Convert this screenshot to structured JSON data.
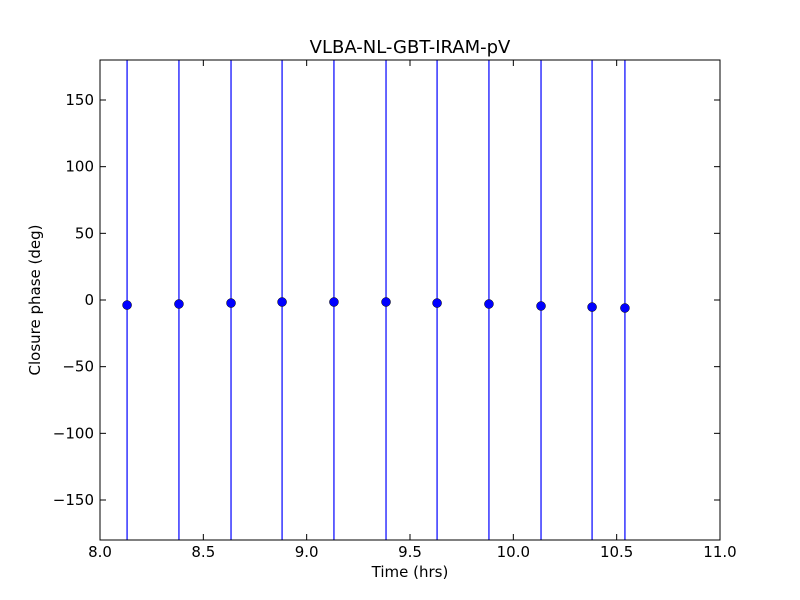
{
  "chart_data": {
    "type": "errorbar",
    "title": "VLBA-NL-GBT-IRAM-pV",
    "x_label": "Time (hrs)",
    "y_label": "Closure phase (deg)",
    "x": [
      8.131,
      8.382,
      8.634,
      8.881,
      9.132,
      9.384,
      9.631,
      9.882,
      10.134,
      10.381,
      10.54
    ],
    "values": [
      -3.8,
      -3,
      -2.3,
      -1.5,
      -1.5,
      -1.5,
      -2.3,
      -3,
      -4.5,
      -5.3,
      -6
    ],
    "errors": [
      200,
      200,
      200,
      200,
      200,
      200,
      200,
      200,
      200,
      200,
      200
    ],
    "color": "#0000ff",
    "xlim": [
      8,
      11
    ],
    "xticks": [
      {
        "value": 8,
        "label": "8.0"
      },
      8.5,
      {
        "value": 9,
        "label": "9.0"
      },
      9.5,
      {
        "value": 10,
        "label": "10.0"
      },
      10.5,
      {
        "value": 11,
        "label": "11.0"
      }
    ],
    "ylim": [
      -180,
      180
    ],
    "yticks": [
      {
        "value": -150,
        "label": "−150"
      },
      {
        "value": -100,
        "label": "−100"
      },
      {
        "value": -50,
        "label": "−50"
      },
      0,
      50,
      100,
      150
    ],
    "grid": false
  }
}
